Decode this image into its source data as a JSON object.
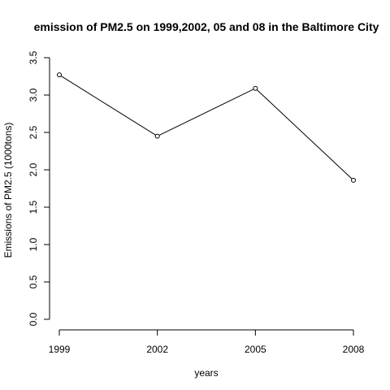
{
  "chart_data": {
    "type": "line",
    "title": "emission of PM2.5 on 1999,2002, 05 and 08 in the Baltimore City",
    "xlabel": "years",
    "ylabel": "Emissions of PM2.5 (1000tons)",
    "x": [
      1999,
      2002,
      2005,
      2008
    ],
    "x_tick_labels": [
      "1999",
      "2002",
      "2005",
      "2008"
    ],
    "y_ticks": [
      0.0,
      0.5,
      1.0,
      1.5,
      2.0,
      2.5,
      3.0,
      3.5
    ],
    "y_tick_labels": [
      "0.0",
      "0.5",
      "1.0",
      "1.5",
      "2.0",
      "2.5",
      "3.0",
      "3.5"
    ],
    "series": [
      {
        "values": [
          3.27,
          2.45,
          3.09,
          1.86
        ]
      }
    ],
    "ylim": [
      0.0,
      3.5
    ],
    "grid": false,
    "line_color": "#000000",
    "marker": "open-circle"
  }
}
